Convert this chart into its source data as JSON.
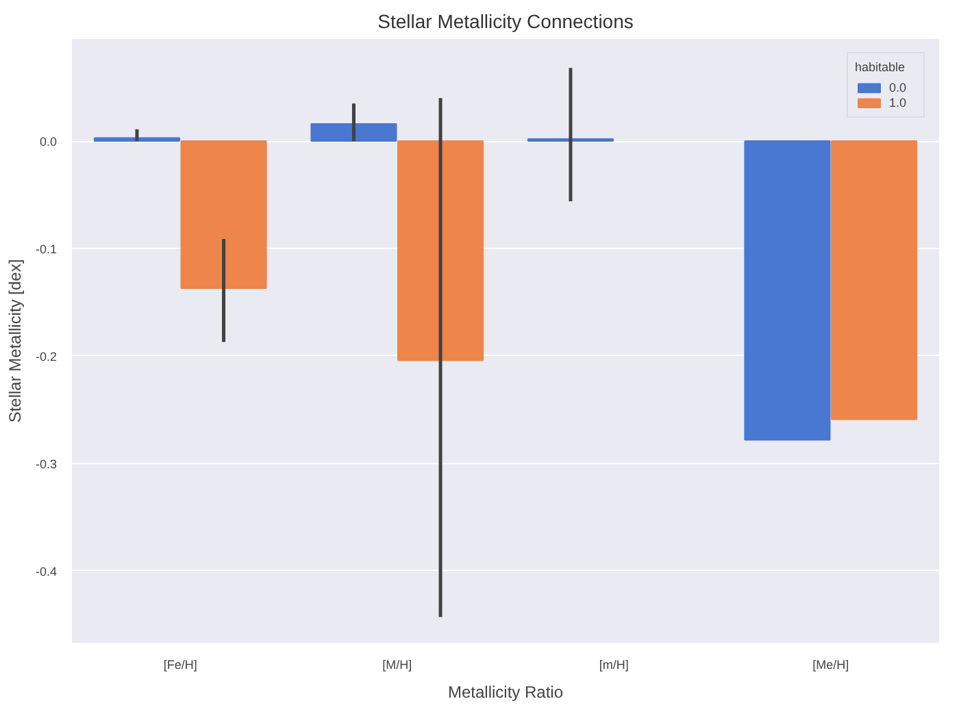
{
  "chart_data": {
    "type": "bar",
    "title": "Stellar Metallicity Connections",
    "xlabel": "Metallicity Ratio",
    "ylabel": "Stellar Metallicity [dex]",
    "legend_title": "habitable",
    "categories": [
      "[Fe/H]",
      "[M/H]",
      "[m/H]",
      "[Me/H]"
    ],
    "series": [
      {
        "name": "0.0",
        "color": "#4878d0",
        "values": [
          0.003,
          0.016,
          0.002,
          -0.278
        ],
        "errors": [
          [
            0.0,
            0.011
          ],
          [
            0.0,
            0.035
          ],
          [
            -0.056,
            0.068
          ],
          null
        ]
      },
      {
        "name": "1.0",
        "color": "#ee854a",
        "values": [
          -0.137,
          -0.204,
          null,
          -0.259
        ],
        "errors": [
          [
            -0.187,
            -0.091
          ],
          [
            -0.443,
            0.04
          ],
          null,
          null
        ]
      }
    ],
    "ylim": [
      -0.467,
      0.095
    ],
    "yticks": [
      {
        "value": 0,
        "label": "0.0"
      },
      {
        "value": -0.1,
        "label": "-0.1"
      },
      {
        "value": -0.2,
        "label": "-0.2"
      },
      {
        "value": -0.3,
        "label": "-0.3"
      },
      {
        "value": -0.4,
        "label": "-0.4"
      }
    ],
    "grid": "y",
    "legend": "top right"
  }
}
